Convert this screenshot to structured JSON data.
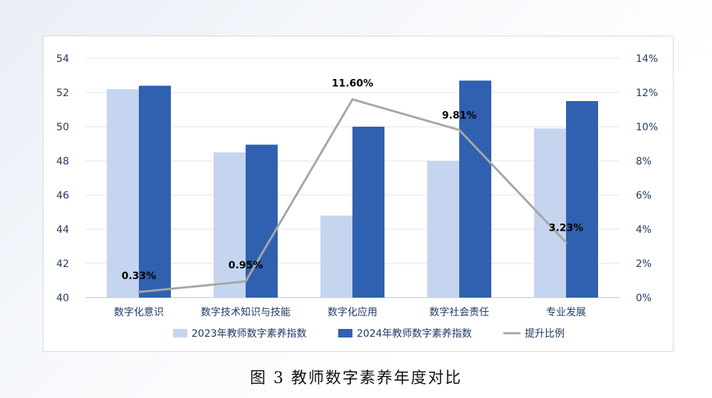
{
  "caption": "图 3  教师数字素养年度对比",
  "chart_data": {
    "type": "bar",
    "categories": [
      "数字化意识",
      "数字技术知识与技能",
      "数字化应用",
      "数字社会责任",
      "专业发展"
    ],
    "series": [
      {
        "name": "2023年教师数字素养指数",
        "type": "bar",
        "axis": "left",
        "color": "#c5d5ef",
        "values": [
          52.2,
          48.5,
          44.8,
          48.0,
          49.9
        ]
      },
      {
        "name": "2024年教师数字素养指数",
        "type": "bar",
        "axis": "left",
        "color": "#3060b0",
        "values": [
          52.4,
          48.95,
          50.0,
          52.7,
          51.5
        ]
      },
      {
        "name": "提升比例",
        "type": "line",
        "axis": "right",
        "color": "#a6a6a6",
        "values": [
          0.33,
          0.95,
          11.6,
          9.81,
          3.23
        ]
      }
    ],
    "line_labels": [
      "0.33%",
      "0.95%",
      "11.60%",
      "9.81%",
      "3.23%"
    ],
    "y_left": {
      "min": 40,
      "max": 54,
      "ticks": [
        "40",
        "42",
        "44",
        "46",
        "48",
        "50",
        "52",
        "54"
      ]
    },
    "y_right": {
      "min": 0,
      "max": 14,
      "ticks": [
        "0%",
        "2%",
        "4%",
        "6%",
        "8%",
        "10%",
        "12%",
        "14%"
      ]
    },
    "grid": true,
    "legend_position": "bottom"
  }
}
